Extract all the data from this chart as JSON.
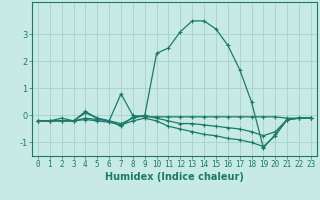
{
  "title": "",
  "xlabel": "Humidex (Indice chaleur)",
  "ylabel": "",
  "background_color": "#c8eae4",
  "grid_color": "#a0ccc4",
  "line_color": "#1a7a6a",
  "x_data": [
    0,
    1,
    2,
    3,
    4,
    5,
    6,
    7,
    8,
    9,
    10,
    11,
    12,
    13,
    14,
    15,
    16,
    17,
    18,
    19,
    20,
    21,
    22,
    23
  ],
  "series": [
    [
      -0.2,
      -0.2,
      -0.1,
      -0.2,
      0.1,
      -0.1,
      -0.2,
      -0.4,
      -0.05,
      0.0,
      2.3,
      2.5,
      3.1,
      3.5,
      3.5,
      3.2,
      2.6,
      1.7,
      0.5,
      -1.2,
      -0.7,
      -0.15,
      -0.1,
      -0.08
    ],
    [
      -0.2,
      -0.2,
      -0.2,
      -0.2,
      0.15,
      -0.1,
      -0.2,
      0.8,
      0.0,
      -0.05,
      -0.05,
      -0.05,
      -0.05,
      -0.05,
      -0.05,
      -0.05,
      -0.05,
      -0.05,
      -0.05,
      -0.05,
      -0.05,
      -0.1,
      -0.1,
      -0.08
    ],
    [
      -0.2,
      -0.2,
      -0.2,
      -0.2,
      -0.15,
      -0.2,
      -0.25,
      -0.35,
      -0.2,
      -0.1,
      -0.2,
      -0.4,
      -0.5,
      -0.6,
      -0.7,
      -0.75,
      -0.85,
      -0.9,
      -1.0,
      -1.15,
      -0.75,
      -0.15,
      -0.1,
      -0.08
    ],
    [
      -0.2,
      -0.2,
      -0.2,
      -0.2,
      -0.1,
      -0.15,
      -0.2,
      -0.3,
      -0.1,
      0.0,
      -0.1,
      -0.2,
      -0.3,
      -0.3,
      -0.35,
      -0.4,
      -0.45,
      -0.5,
      -0.6,
      -0.75,
      -0.6,
      -0.15,
      -0.1,
      -0.08
    ]
  ],
  "ylim": [
    -1.5,
    4.2
  ],
  "xlim": [
    -0.5,
    23.5
  ],
  "yticks": [
    -1,
    0,
    1,
    2,
    3
  ],
  "xticks": [
    0,
    1,
    2,
    3,
    4,
    5,
    6,
    7,
    8,
    9,
    10,
    11,
    12,
    13,
    14,
    15,
    16,
    17,
    18,
    19,
    20,
    21,
    22,
    23
  ],
  "tick_fontsize": 5.5,
  "xlabel_fontsize": 7.0,
  "line_width": 0.9,
  "marker_size": 3.0
}
